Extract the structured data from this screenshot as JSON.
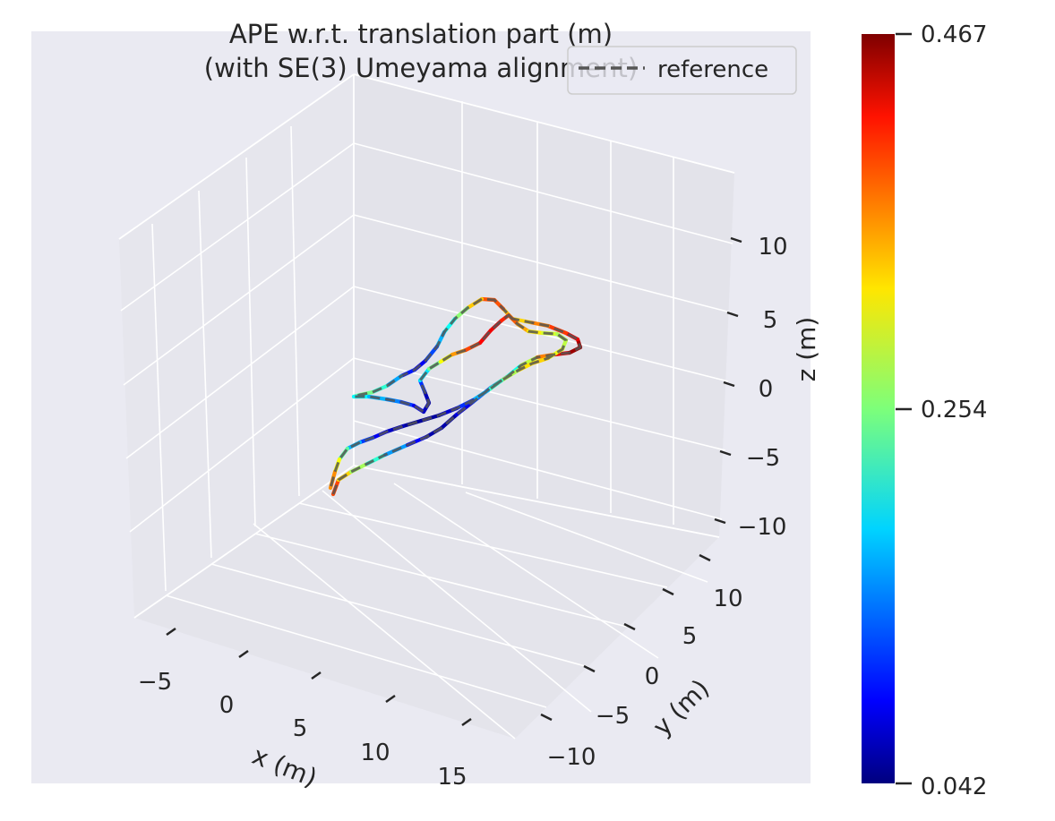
{
  "chart_data": {
    "type": "line",
    "projection": "3d",
    "title_line1": "APE w.r.t. translation part (m)",
    "title_line2": "(with SE(3) Umeyama alignment)",
    "xlabel": "x (m)",
    "ylabel": "y (m)",
    "zlabel": "z (m)",
    "xticks": [
      "−5",
      "0",
      "5",
      "10",
      "15"
    ],
    "yticks": [
      "−10",
      "−5",
      "0",
      "5",
      "10"
    ],
    "zticks": [
      "−10",
      "−5",
      "0",
      "5",
      "10"
    ],
    "legend": {
      "entries": [
        "reference"
      ],
      "placement": "top-right",
      "line_style": "dashed",
      "line_color": "#555555"
    },
    "colorbar": {
      "colormap": "jet",
      "min": 0.042,
      "mid": 0.254,
      "max": 0.467,
      "tick_labels": [
        "0.467",
        "0.254",
        "0.042"
      ]
    },
    "grid": true,
    "background": "#eaeaf2"
  }
}
